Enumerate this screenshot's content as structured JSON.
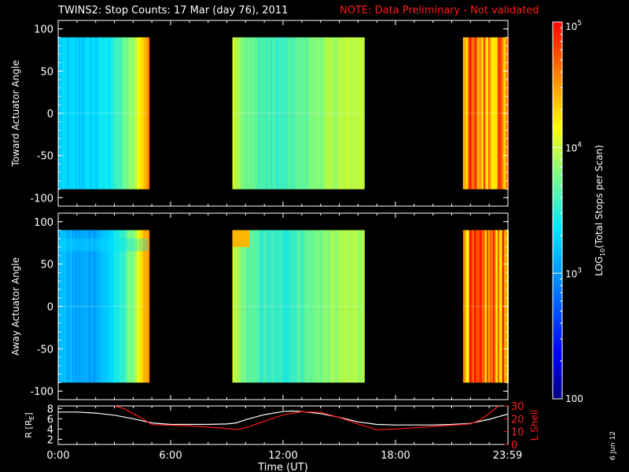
{
  "header": {
    "title": "TWINS2: Stop Counts: 17 Mar (day  76), 2011",
    "note": "NOTE: Data Preliminary - Not validated"
  },
  "date_stamp": "6 Jun 12",
  "colors": {
    "note": "#ff1a1a",
    "r_line": "#ffffff",
    "lshell_line": "#ff1a1a",
    "background": "#000000"
  },
  "chart_data": [
    {
      "type": "heatmap",
      "panel": "top",
      "ylabel": "Toward Actuator Angle",
      "ylim": [
        -110,
        110
      ],
      "y_ticks": [
        "100",
        "50",
        "0",
        "-50",
        "-100"
      ],
      "y_tick_values": [
        100,
        50,
        0,
        -50,
        -100
      ],
      "data_y_range": [
        -90,
        90
      ],
      "x_range_hours": [
        0,
        24
      ],
      "coverage_hours": [
        [
          0.0,
          4.8
        ],
        [
          9.3,
          16.3
        ],
        [
          21.6,
          24.0
        ]
      ],
      "log10_counts_per_hour": [
        [
          0.0,
          3.25
        ],
        [
          1.0,
          3.25
        ],
        [
          2.0,
          3.3
        ],
        [
          3.0,
          3.5
        ],
        [
          3.5,
          3.7
        ],
        [
          4.0,
          3.9
        ],
        [
          4.5,
          4.35
        ],
        [
          4.8,
          4.55
        ],
        [
          9.3,
          4.1
        ],
        [
          10.0,
          3.75
        ],
        [
          11.0,
          3.6
        ],
        [
          12.0,
          3.55
        ],
        [
          13.0,
          3.7
        ],
        [
          14.0,
          3.85
        ],
        [
          15.0,
          3.95
        ],
        [
          16.3,
          4.0
        ],
        [
          21.6,
          4.6
        ],
        [
          22.5,
          4.5
        ],
        [
          23.5,
          4.6
        ],
        [
          24.0,
          4.5
        ]
      ]
    },
    {
      "type": "heatmap",
      "panel": "middle",
      "ylabel": "Away Actuator Angle",
      "ylim": [
        -110,
        110
      ],
      "y_ticks": [
        "100",
        "50",
        "0",
        "-50",
        "-100"
      ],
      "y_tick_values": [
        100,
        50,
        0,
        -50,
        -100
      ],
      "data_y_range": [
        -90,
        90
      ],
      "x_range_hours": [
        0,
        24
      ],
      "coverage_hours": [
        [
          0.0,
          4.8
        ],
        [
          9.3,
          16.3
        ],
        [
          21.6,
          24.0
        ]
      ],
      "log10_counts_per_hour": [
        [
          0.0,
          3.2
        ],
        [
          1.0,
          3.05
        ],
        [
          2.0,
          3.1
        ],
        [
          3.0,
          3.35
        ],
        [
          3.5,
          3.6
        ],
        [
          4.0,
          3.85
        ],
        [
          4.5,
          4.3
        ],
        [
          4.8,
          4.5
        ],
        [
          9.3,
          4.0
        ],
        [
          10.0,
          3.7
        ],
        [
          11.0,
          3.55
        ],
        [
          12.0,
          3.5
        ],
        [
          13.0,
          3.65
        ],
        [
          14.0,
          3.8
        ],
        [
          15.0,
          3.9
        ],
        [
          16.3,
          3.95
        ],
        [
          21.6,
          4.6
        ],
        [
          22.5,
          4.5
        ],
        [
          23.5,
          4.6
        ],
        [
          24.0,
          4.5
        ]
      ]
    },
    {
      "type": "line",
      "panel": "bottom",
      "xlabel": "Time (UT)",
      "x_ticks": [
        "0:00",
        "6:00",
        "12:00",
        "18:00",
        "23:59"
      ],
      "x_tick_hours": [
        0,
        6,
        12,
        18,
        23.98
      ],
      "ylabel_left": "R [R",
      "ylabel_left_sub": "E",
      "ylabel_left_end": "]",
      "ylabel_right": "L Shell",
      "ylim_left": [
        1,
        8.5
      ],
      "ylim_right": [
        0,
        30
      ],
      "y_ticks_left": [
        "2",
        "4",
        "6",
        "8"
      ],
      "y_ticks_right": [
        "0",
        "10",
        "20",
        "30"
      ],
      "series": [
        {
          "axis": "left",
          "color": "#ffffff",
          "x": [
            0,
            1,
            2,
            3,
            4,
            5,
            6,
            7,
            8,
            9,
            9.5,
            10,
            11,
            12,
            12.5,
            13,
            14,
            15,
            16,
            17,
            18,
            19,
            20,
            21,
            22,
            23,
            23.98
          ],
          "y": [
            7.3,
            7.3,
            7.1,
            6.7,
            6.0,
            5.2,
            4.9,
            4.9,
            4.9,
            5.0,
            5.2,
            5.8,
            6.8,
            7.4,
            7.5,
            7.4,
            7.0,
            6.3,
            5.4,
            4.9,
            4.8,
            4.8,
            4.8,
            4.9,
            5.1,
            5.9,
            6.9
          ]
        },
        {
          "axis": "right",
          "color": "#ff1a1a",
          "x": [
            3.0,
            3.5,
            4.0,
            4.5,
            5,
            6,
            7,
            8,
            9,
            9.5,
            10,
            11,
            12,
            13,
            14,
            15,
            16,
            17,
            18,
            19,
            20,
            21,
            22,
            22.5,
            23,
            23.5
          ],
          "y": [
            30,
            28,
            24,
            20,
            15.5,
            15,
            14.5,
            13.5,
            12.5,
            11.5,
            13,
            18,
            23,
            25.5,
            25,
            21,
            16,
            11.5,
            12,
            13,
            14,
            15,
            16,
            19,
            24,
            30
          ]
        }
      ]
    }
  ],
  "colorbar": {
    "label": "LOG",
    "label_sub": "10",
    "label_end": "(Total Stops per Scan)",
    "range_log10": [
      2,
      5
    ],
    "ticks": [
      {
        "base": "10",
        "exp": "5",
        "value": 5
      },
      {
        "base": "10",
        "exp": "4",
        "value": 4
      },
      {
        "base": "10",
        "exp": "3",
        "value": 3
      },
      {
        "base": "100",
        "exp": "",
        "value": 2
      }
    ]
  }
}
